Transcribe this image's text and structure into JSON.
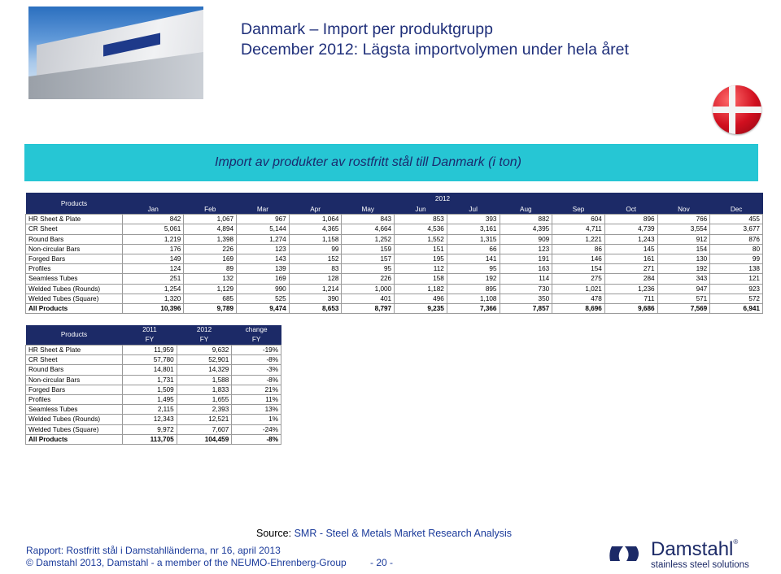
{
  "header": {
    "title_line1": "Danmark – Import per produktgrupp",
    "title_line2": "December 2012: Lägsta importvolymen under hela året"
  },
  "banner": {
    "text": "Import av produkter av rostfritt stål till Danmark (i ton)"
  },
  "monthly_table": {
    "products_header": "Products",
    "year": "2012",
    "months": [
      "Jan",
      "Feb",
      "Mar",
      "Apr",
      "May",
      "Jun",
      "Jul",
      "Aug",
      "Sep",
      "Oct",
      "Nov",
      "Dec"
    ],
    "rows": [
      {
        "label": "HR Sheet & Plate",
        "values": [
          "842",
          "1,067",
          "967",
          "1,064",
          "843",
          "853",
          "393",
          "882",
          "604",
          "896",
          "766",
          "455"
        ]
      },
      {
        "label": "CR Sheet",
        "values": [
          "5,061",
          "4,894",
          "5,144",
          "4,365",
          "4,664",
          "4,536",
          "3,161",
          "4,395",
          "4,711",
          "4,739",
          "3,554",
          "3,677"
        ]
      },
      {
        "label": "Round Bars",
        "values": [
          "1,219",
          "1,398",
          "1,274",
          "1,158",
          "1,252",
          "1,552",
          "1,315",
          "909",
          "1,221",
          "1,243",
          "912",
          "876"
        ]
      },
      {
        "label": "Non-circular Bars",
        "values": [
          "176",
          "226",
          "123",
          "99",
          "159",
          "151",
          "66",
          "123",
          "86",
          "145",
          "154",
          "80"
        ]
      },
      {
        "label": "Forged Bars",
        "values": [
          "149",
          "169",
          "143",
          "152",
          "157",
          "195",
          "141",
          "191",
          "146",
          "161",
          "130",
          "99"
        ]
      },
      {
        "label": "Profiles",
        "values": [
          "124",
          "89",
          "139",
          "83",
          "95",
          "112",
          "95",
          "163",
          "154",
          "271",
          "192",
          "138"
        ]
      },
      {
        "label": "Seamless Tubes",
        "values": [
          "251",
          "132",
          "169",
          "128",
          "226",
          "158",
          "192",
          "114",
          "275",
          "284",
          "343",
          "121"
        ]
      },
      {
        "label": "Welded Tubes (Rounds)",
        "values": [
          "1,254",
          "1,129",
          "990",
          "1,214",
          "1,000",
          "1,182",
          "895",
          "730",
          "1,021",
          "1,236",
          "947",
          "923"
        ]
      },
      {
        "label": "Welded Tubes (Square)",
        "values": [
          "1,320",
          "685",
          "525",
          "390",
          "401",
          "496",
          "1,108",
          "350",
          "478",
          "711",
          "571",
          "572"
        ]
      }
    ],
    "total": {
      "label": "All Products",
      "values": [
        "10,396",
        "9,789",
        "9,474",
        "8,653",
        "8,797",
        "9,235",
        "7,366",
        "7,857",
        "8,696",
        "9,686",
        "7,569",
        "6,941"
      ]
    }
  },
  "fy_table": {
    "products_header": "Products",
    "col_headers": [
      {
        "top": "2011",
        "bottom": "FY"
      },
      {
        "top": "2012",
        "bottom": "FY"
      },
      {
        "top": "change",
        "bottom": "FY"
      }
    ],
    "rows": [
      {
        "label": "HR Sheet & Plate",
        "values": [
          "11,959",
          "9,632",
          "-19%"
        ]
      },
      {
        "label": "CR Sheet",
        "values": [
          "57,780",
          "52,901",
          "-8%"
        ]
      },
      {
        "label": "Round Bars",
        "values": [
          "14,801",
          "14,329",
          "-3%"
        ]
      },
      {
        "label": "Non-circular Bars",
        "values": [
          "1,731",
          "1,588",
          "-8%"
        ]
      },
      {
        "label": "Forged Bars",
        "values": [
          "1,509",
          "1,833",
          "21%"
        ]
      },
      {
        "label": "Profiles",
        "values": [
          "1,495",
          "1,655",
          "11%"
        ]
      },
      {
        "label": "Seamless Tubes",
        "values": [
          "2,115",
          "2,393",
          "13%"
        ]
      },
      {
        "label": "Welded Tubes (Rounds)",
        "values": [
          "12,343",
          "12,521",
          "1%"
        ]
      },
      {
        "label": "Welded Tubes (Square)",
        "values": [
          "9,972",
          "7,607",
          "-24%"
        ]
      }
    ],
    "total": {
      "label": "All Products",
      "values": [
        "113,705",
        "104,459",
        "-8%"
      ]
    }
  },
  "footer": {
    "source_label": "Source:",
    "source_text": "SMR - Steel & Metals Market Research Analysis",
    "report": "Rapport: Rostfritt stål i Damstahlländerna, nr 16, april 2013",
    "copyright": "© Damstahl 2013, Damstahl - a member of the NEUMO-Ehrenberg-Group",
    "page": "- 20 -"
  },
  "logo": {
    "name": "Damstahl",
    "registered": "®",
    "tagline": "stainless steel solutions"
  },
  "colors": {
    "header_navy": "#1c2a67",
    "banner_cyan": "#26c6d4",
    "title_blue": "#1f2f7a"
  }
}
